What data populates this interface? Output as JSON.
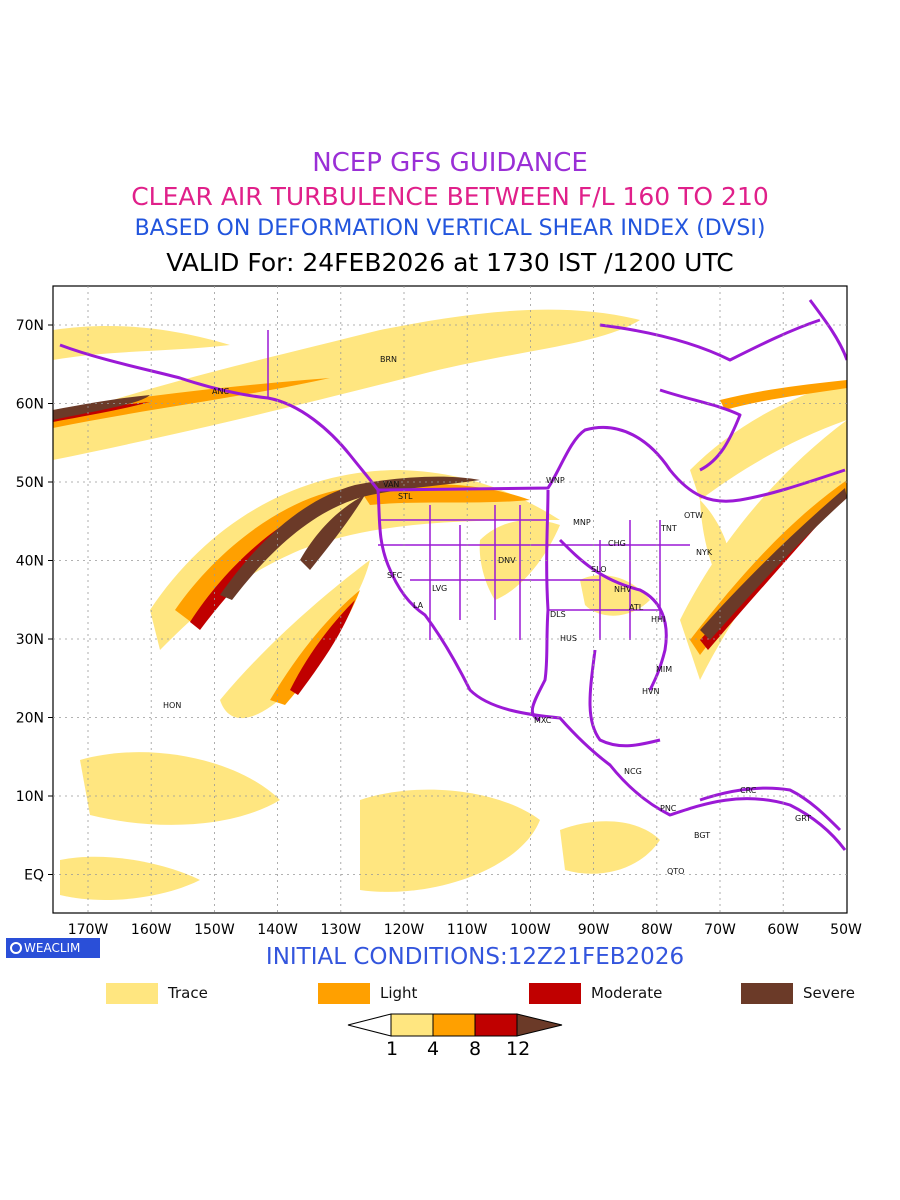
{
  "titles": {
    "line1": "NCEP GFS GUIDANCE",
    "line2": "CLEAR AIR TURBULENCE BETWEEN F/L 160 TO 210",
    "line3": "BASED ON DEFORMATION VERTICAL SHEAR INDEX (DVSI)",
    "line4": "VALID For: 24FEB2026 at 1730 IST /1200 UTC"
  },
  "axes": {
    "y_labels": [
      "70N",
      "60N",
      "50N",
      "40N",
      "30N",
      "20N",
      "10N",
      "EQ"
    ],
    "x_labels": [
      "170W",
      "160W",
      "150W",
      "140W",
      "130W",
      "120W",
      "110W",
      "100W",
      "90W",
      "80W",
      "70W",
      "60W",
      "50W"
    ]
  },
  "cities": [
    {
      "name": "BRN"
    },
    {
      "name": "ANC"
    },
    {
      "name": "VAN"
    },
    {
      "name": "STL"
    },
    {
      "name": "WNP"
    },
    {
      "name": "MNP"
    },
    {
      "name": "OTW"
    },
    {
      "name": "TNT"
    },
    {
      "name": "CHG"
    },
    {
      "name": "NYK"
    },
    {
      "name": "DNV"
    },
    {
      "name": "SFC"
    },
    {
      "name": "LVG"
    },
    {
      "name": "LA"
    },
    {
      "name": "SLO"
    },
    {
      "name": "NHV"
    },
    {
      "name": "ATL"
    },
    {
      "name": "DLS"
    },
    {
      "name": "HHI"
    },
    {
      "name": "HUS"
    },
    {
      "name": "MIM"
    },
    {
      "name": "HVN"
    },
    {
      "name": "HON"
    },
    {
      "name": "MXC"
    },
    {
      "name": "NCG"
    },
    {
      "name": "PNC"
    },
    {
      "name": "CRC"
    },
    {
      "name": "BGT"
    },
    {
      "name": "GRT"
    },
    {
      "name": "QTO"
    }
  ],
  "branding": {
    "logo_text": "WEACLIM",
    "initial_conditions": "INITIAL CONDITIONS:12Z21FEB2026"
  },
  "legend": [
    {
      "label": "Trace",
      "color": "#ffe680"
    },
    {
      "label": "Light",
      "color": "#ffa000"
    },
    {
      "label": "Moderate",
      "color": "#c00000"
    },
    {
      "label": "Severe",
      "color": "#6b3a28"
    }
  ],
  "colorbar": {
    "ticks": [
      "1",
      "4",
      "8",
      "12"
    ],
    "colors": [
      "#ffe680",
      "#ffa000",
      "#c00000",
      "#6b3a28"
    ]
  },
  "colors": {
    "coastline": "#9b19d6",
    "trace": "#ffe680",
    "light": "#ffa000",
    "moderate": "#c00000",
    "severe": "#6b3a28"
  }
}
